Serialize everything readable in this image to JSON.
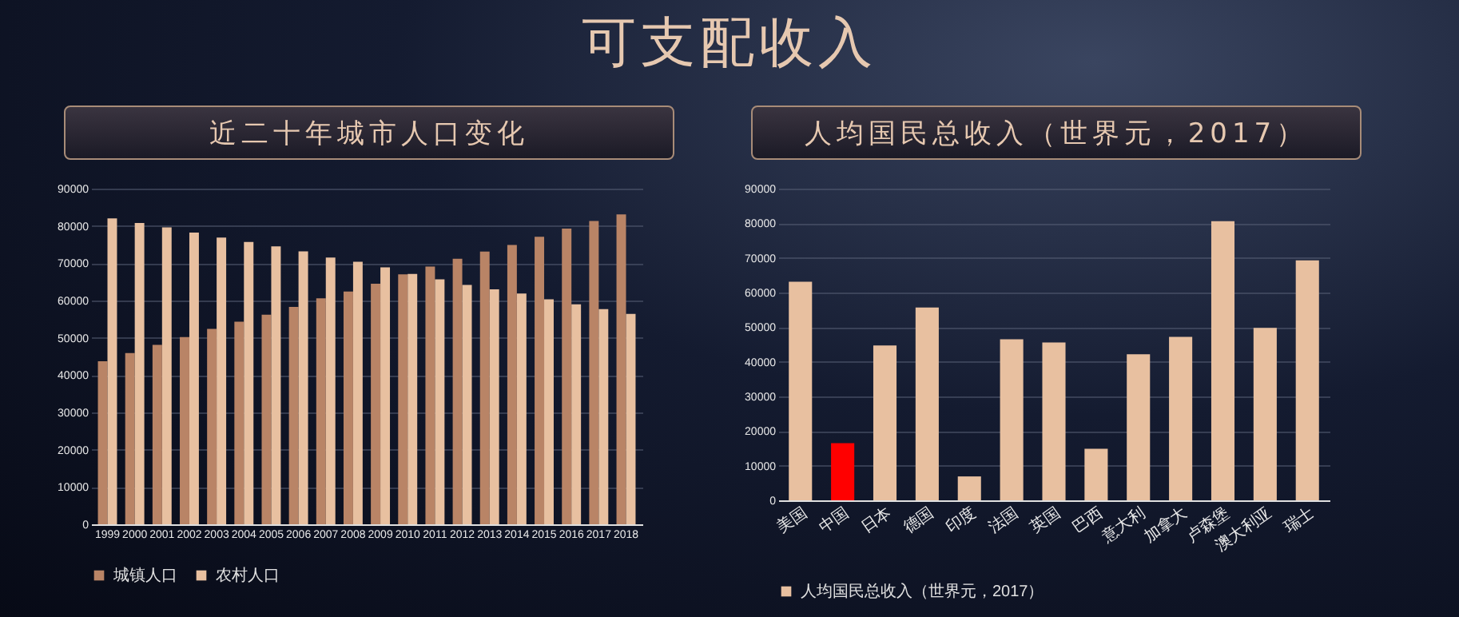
{
  "chart_data": [
    {
      "type": "bar",
      "title": "近二十年城市人口变化",
      "annotations": [
        "可支配收入"
      ],
      "categories": [
        "1999",
        "2000",
        "2001",
        "2002",
        "2003",
        "2004",
        "2005",
        "2006",
        "2007",
        "2008",
        "2009",
        "2010",
        "2011",
        "2012",
        "2013",
        "2014",
        "2015",
        "2016",
        "2017",
        "2018"
      ],
      "series": [
        {
          "name": "城镇人口",
          "color": "#b98466",
          "values": [
            43700,
            45900,
            48100,
            50200,
            52400,
            54300,
            56200,
            58300,
            60600,
            62400,
            64500,
            67000,
            69100,
            71200,
            73100,
            74900,
            77100,
            79300,
            81300,
            83100
          ]
        },
        {
          "name": "农村人口",
          "color": "#e8c0a0",
          "values": [
            82000,
            80800,
            79600,
            78200,
            76900,
            75700,
            74500,
            73200,
            71500,
            70400,
            68900,
            67100,
            65700,
            64200,
            63000,
            61900,
            60300,
            59000,
            57700,
            56400
          ]
        }
      ],
      "ylim": [
        0,
        90000
      ],
      "yticks": [
        0,
        10000,
        20000,
        30000,
        40000,
        50000,
        60000,
        70000,
        80000,
        90000
      ],
      "grid": "y",
      "legend": "bottom"
    },
    {
      "type": "bar",
      "title": "人均国民总收入（世界元，2017）",
      "categories": [
        "美国",
        "中国",
        "日本",
        "德国",
        "印度",
        "法国",
        "英国",
        "巴西",
        "意大利",
        "加拿大",
        "卢森堡",
        "澳大利亚",
        "瑞士"
      ],
      "series": [
        {
          "name": "人均国民总收入（世界元，2017）",
          "color": "#e8c0a0",
          "values": [
            63100,
            16500,
            44700,
            55700,
            6900,
            46500,
            45600,
            14900,
            42200,
            47200,
            80600,
            49800,
            69300
          ],
          "colors": [
            "#e8c0a0",
            "#ff0000",
            "#e8c0a0",
            "#e8c0a0",
            "#e8c0a0",
            "#e8c0a0",
            "#e8c0a0",
            "#e8c0a0",
            "#e8c0a0",
            "#e8c0a0",
            "#e8c0a0",
            "#e8c0a0",
            "#e8c0a0"
          ]
        }
      ],
      "ylim": [
        0,
        90000
      ],
      "yticks": [
        0,
        10000,
        20000,
        30000,
        40000,
        50000,
        60000,
        70000,
        80000,
        90000
      ],
      "grid": "y",
      "legend": "bottom"
    }
  ]
}
